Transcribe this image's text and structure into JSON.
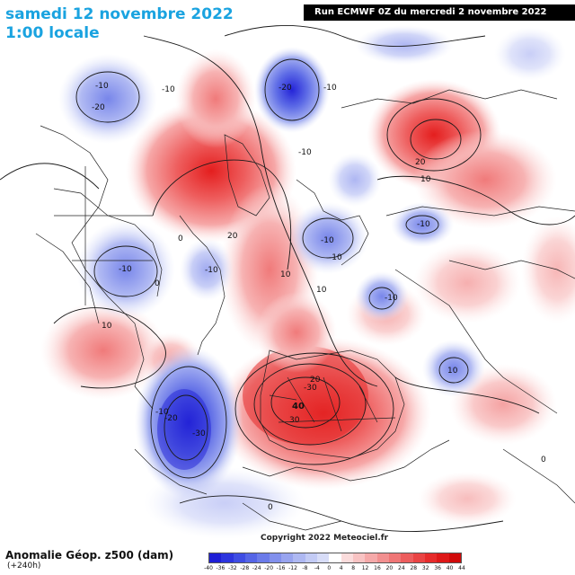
{
  "header": {
    "date_line": "samedi 12 novembre 2022",
    "time_line": "1:00 locale",
    "run_info": "Run ECMWF 0Z du mercredi 2 novembre 2022"
  },
  "footer": {
    "title": "Anomalie Géop. z500 (dam)",
    "lead": "(+240h)",
    "copyright": "Copyright 2022 Meteociel.fr"
  },
  "legend": {
    "labels": [
      "-40",
      "-36",
      "-32",
      "-28",
      "-24",
      "-20",
      "-16",
      "-12",
      "-8",
      "-4",
      "0",
      "4",
      "8",
      "12",
      "16",
      "20",
      "24",
      "28",
      "32",
      "36",
      "40",
      "44"
    ],
    "colors": [
      "#1f1fd6",
      "#2d35de",
      "#3f4de3",
      "#5565e6",
      "#6b7be9",
      "#8290ec",
      "#98a4ef",
      "#aeb8f2",
      "#c3cbf5",
      "#d8ddf8",
      "#ffffff",
      "#fbdcdc",
      "#f8c3c3",
      "#f5a9a9",
      "#f29090",
      "#ef7676",
      "#ec5d5d",
      "#e94444",
      "#e62b2b",
      "#de1818",
      "#d00a0a"
    ]
  },
  "contour_labels": [
    {
      "text": "-10"
    },
    {
      "text": "-20"
    },
    {
      "text": "-10"
    },
    {
      "text": "-20"
    },
    {
      "text": "-10"
    },
    {
      "text": "20"
    },
    {
      "text": "10"
    },
    {
      "text": "-10"
    },
    {
      "text": "-10"
    },
    {
      "text": "-10"
    },
    {
      "text": "-10"
    },
    {
      "text": "0"
    },
    {
      "text": "-10"
    },
    {
      "text": "20"
    },
    {
      "text": "10"
    },
    {
      "text": "10"
    },
    {
      "text": "-10"
    },
    {
      "text": "0"
    },
    {
      "text": "10"
    },
    {
      "text": "-10"
    },
    {
      "text": "20"
    },
    {
      "text": "-30"
    },
    {
      "text": "40"
    },
    {
      "text": "30"
    },
    {
      "text": "-20"
    },
    {
      "text": "-10"
    },
    {
      "text": "-30"
    },
    {
      "text": "0"
    },
    {
      "text": "0"
    },
    {
      "text": "10"
    }
  ]
}
